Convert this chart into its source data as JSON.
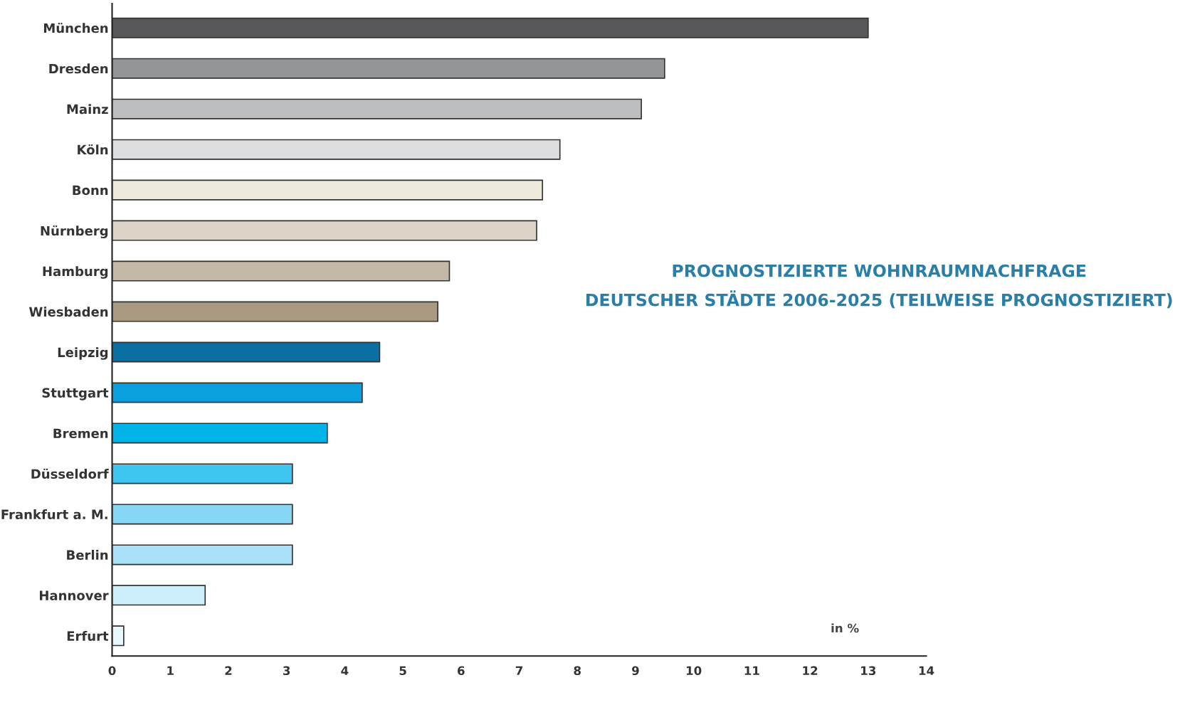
{
  "chart_data": {
    "type": "bar",
    "orientation": "horizontal",
    "title": "PROGNOSTIZIERTE WOHNRAUMNACHFRAGE\nDEUTSCHER STÄDTE 2006-2025 (TEILWEISE PROGNOSTIZIERT)",
    "xlabel": "in %",
    "categories": [
      "München",
      "Dresden",
      "Mainz",
      "Köln",
      "Bonn",
      "Nürnberg",
      "Hamburg",
      "Wiesbaden",
      "Leipzig",
      "Stuttgart",
      "Bremen",
      "Düsseldorf",
      "Frankfurt a. M.",
      "Berlin",
      "Hannover",
      "Erfurt"
    ],
    "values": [
      13.0,
      9.5,
      9.1,
      7.7,
      7.4,
      7.3,
      5.8,
      5.6,
      4.6,
      4.3,
      3.7,
      3.1,
      3.1,
      3.1,
      1.6,
      0.2
    ],
    "colors": [
      "#58585a",
      "#939598",
      "#bcbec0",
      "#dcddde",
      "#ece8dc",
      "#ddd5c8",
      "#c4b8a6",
      "#a89a80",
      "#0b6fa4",
      "#0aa0e0",
      "#00b4ea",
      "#3fc6f0",
      "#87d6f5",
      "#a9e0f8",
      "#cdeefb",
      "#e8f6fd"
    ],
    "xlim": [
      0,
      14
    ],
    "xticks": [
      0,
      1,
      2,
      3,
      4,
      5,
      6,
      7,
      8,
      9,
      10,
      11,
      12,
      13,
      14
    ],
    "grid": false,
    "legend": false
  }
}
